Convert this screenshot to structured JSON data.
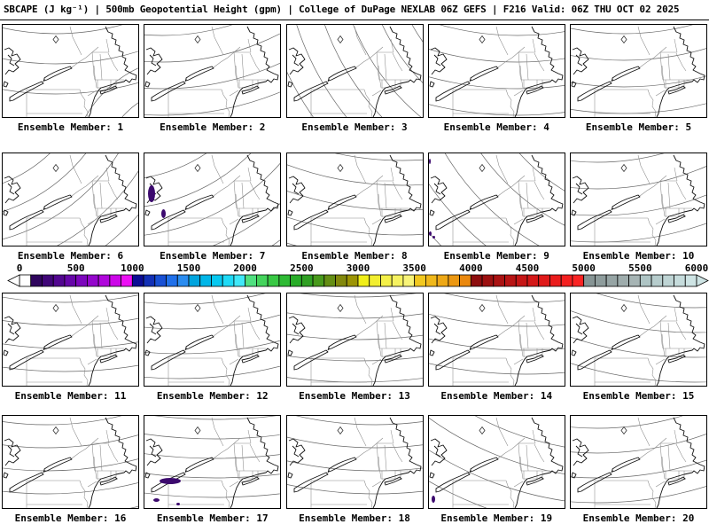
{
  "header": {
    "title": "SBCAPE (J kg⁻¹) | 500mb Geopotential Height (gpm) | College of DuPage NEXLAB 06Z GEFS | F216 Valid: 06Z THU OCT 02 2025"
  },
  "chart_data": {
    "type": "ensemble-map-grid",
    "shaded_field": "SBCAPE (J kg⁻¹)",
    "contour_field": "500mb Geopotential Height (gpm)",
    "source": "College of DuPage NEXLAB",
    "model_run": "06Z GEFS",
    "forecast_hour": "F216",
    "valid_time": "06Z THU OCT 02 2025",
    "region": "Northeast US / Great Lakes",
    "members": [
      {
        "id": 1,
        "label": "Ensemble Member: 1",
        "cape_spots": []
      },
      {
        "id": 2,
        "label": "Ensemble Member: 2",
        "cape_spots": []
      },
      {
        "id": 3,
        "label": "Ensemble Member: 3",
        "cape_spots": []
      },
      {
        "id": 4,
        "label": "Ensemble Member: 4",
        "cape_spots": []
      },
      {
        "id": 5,
        "label": "Ensemble Member: 5",
        "cape_spots": []
      },
      {
        "id": 6,
        "label": "Ensemble Member: 6",
        "cape_spots": []
      },
      {
        "id": 7,
        "label": "Ensemble Member: 7",
        "cape_spots": [
          {
            "x": 4,
            "y": 36,
            "w": 8,
            "h": 19
          },
          {
            "x": 19,
            "y": 63,
            "w": 5,
            "h": 10
          }
        ]
      },
      {
        "id": 8,
        "label": "Ensemble Member: 8",
        "cape_spots": []
      },
      {
        "id": 9,
        "label": "Ensemble Member: 9",
        "cape_spots": [
          {
            "x": 0,
            "y": 6,
            "w": 2,
            "h": 6
          },
          {
            "x": 0,
            "y": 88,
            "w": 3,
            "h": 5
          },
          {
            "x": 4,
            "y": 93,
            "w": 3,
            "h": 3
          }
        ]
      },
      {
        "id": 10,
        "label": "Ensemble Member: 10",
        "cape_spots": []
      },
      {
        "id": 11,
        "label": "Ensemble Member: 11",
        "cape_spots": []
      },
      {
        "id": 12,
        "label": "Ensemble Member: 12",
        "cape_spots": []
      },
      {
        "id": 13,
        "label": "Ensemble Member: 13",
        "cape_spots": []
      },
      {
        "id": 14,
        "label": "Ensemble Member: 14",
        "cape_spots": []
      },
      {
        "id": 15,
        "label": "Ensemble Member: 15",
        "cape_spots": []
      },
      {
        "id": 16,
        "label": "Ensemble Member: 16",
        "cape_spots": []
      },
      {
        "id": 17,
        "label": "Ensemble Member: 17",
        "cape_spots": [
          {
            "x": 17,
            "y": 70,
            "w": 24,
            "h": 7
          },
          {
            "x": 10,
            "y": 93,
            "w": 7,
            "h": 4
          },
          {
            "x": 36,
            "y": 98,
            "w": 4,
            "h": 3
          }
        ]
      },
      {
        "id": 18,
        "label": "Ensemble Member: 18",
        "cape_spots": []
      },
      {
        "id": 19,
        "label": "Ensemble Member: 19",
        "cape_spots": [
          {
            "x": 3,
            "y": 90,
            "w": 4,
            "h": 8
          }
        ]
      },
      {
        "id": 20,
        "label": "Ensemble Member: 20",
        "cape_spots": []
      }
    ],
    "colorbar": {
      "units": "J kg⁻¹",
      "ticks": [
        0,
        500,
        1000,
        1500,
        2000,
        2500,
        3000,
        3500,
        4000,
        4500,
        5000,
        5500,
        6000
      ],
      "segment_value": 100,
      "left_arrow_color": "#ffffff",
      "right_arrow_color": "#cee4e4",
      "cape_fill_color": "#3c0a6e",
      "colors": [
        "#ffffff",
        "#30065e",
        "#400678",
        "#520690",
        "#6606a8",
        "#7c06bc",
        "#9406cc",
        "#b006dc",
        "#cc06e8",
        "#ec10f4",
        "#0c0c94",
        "#1230b6",
        "#1850d4",
        "#2070ea",
        "#2a8cf0",
        "#00a4de",
        "#00b6e8",
        "#06c8f0",
        "#1edaf6",
        "#40e8f8",
        "#50e080",
        "#44d45c",
        "#38c844",
        "#2eba34",
        "#28ac28",
        "#30a024",
        "#489a1c",
        "#648e14",
        "#82880c",
        "#9c9404",
        "#f0ee18",
        "#f2ee30",
        "#f4f048",
        "#f6f260",
        "#f8f478",
        "#f2c81e",
        "#f0b81a",
        "#eea816",
        "#ec9812",
        "#ea880e",
        "#8e0e0e",
        "#9c1010",
        "#aa1212",
        "#b81414",
        "#c61616",
        "#d41818",
        "#e01a1a",
        "#ea1c1c",
        "#f42020",
        "#fa2424",
        "#869494",
        "#8e9c9c",
        "#96a4a4",
        "#9eacac",
        "#a6b4b4",
        "#aec4c4",
        "#b6cccc",
        "#bed4d4",
        "#c6dcdc",
        "#cee4e4"
      ]
    }
  }
}
